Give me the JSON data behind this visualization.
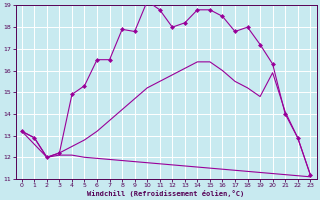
{
  "xlabel": "Windchill (Refroidissement éolien,°C)",
  "background_color": "#c8eaf0",
  "grid_color": "#ffffff",
  "line_color": "#990099",
  "xlim": [
    -0.5,
    23.5
  ],
  "ylim": [
    11,
    19
  ],
  "yticks": [
    11,
    12,
    13,
    14,
    15,
    16,
    17,
    18,
    19
  ],
  "xticks": [
    0,
    1,
    2,
    3,
    4,
    5,
    6,
    7,
    8,
    9,
    10,
    11,
    12,
    13,
    14,
    15,
    16,
    17,
    18,
    19,
    20,
    21,
    22,
    23
  ],
  "s1_x": [
    0,
    1,
    2,
    3,
    4,
    5,
    6,
    7,
    8,
    9,
    10,
    11,
    12,
    13,
    14,
    15,
    16,
    17,
    18,
    19,
    20,
    21,
    22,
    23
  ],
  "s1_y": [
    13.2,
    12.9,
    12.0,
    12.1,
    12.1,
    12.0,
    11.95,
    11.9,
    11.85,
    11.8,
    11.75,
    11.7,
    11.65,
    11.6,
    11.55,
    11.5,
    11.45,
    11.4,
    11.35,
    11.3,
    11.25,
    11.2,
    11.15,
    11.1
  ],
  "s2_x": [
    0,
    2,
    3,
    4,
    5,
    6,
    7,
    8,
    9,
    10,
    11,
    12,
    13,
    14,
    15,
    16,
    17,
    18,
    19,
    20,
    21,
    22,
    23
  ],
  "s2_y": [
    13.2,
    12.0,
    12.2,
    12.5,
    12.8,
    13.2,
    13.7,
    14.2,
    14.7,
    15.2,
    15.5,
    15.8,
    16.1,
    16.4,
    16.4,
    16.0,
    15.5,
    15.2,
    14.8,
    15.9,
    14.1,
    12.9,
    11.2
  ],
  "s3_x": [
    0,
    1,
    2,
    3,
    4,
    5,
    6,
    7,
    8,
    9,
    10,
    11,
    12,
    13,
    14,
    15,
    16,
    17,
    18,
    19,
    20,
    21,
    22,
    23
  ],
  "s3_y": [
    13.2,
    12.9,
    12.0,
    12.2,
    14.9,
    15.3,
    16.5,
    16.5,
    17.9,
    17.8,
    19.2,
    18.8,
    18.0,
    18.2,
    18.8,
    18.8,
    18.5,
    17.8,
    18.0,
    17.2,
    16.3,
    14.0,
    12.9,
    11.2
  ]
}
